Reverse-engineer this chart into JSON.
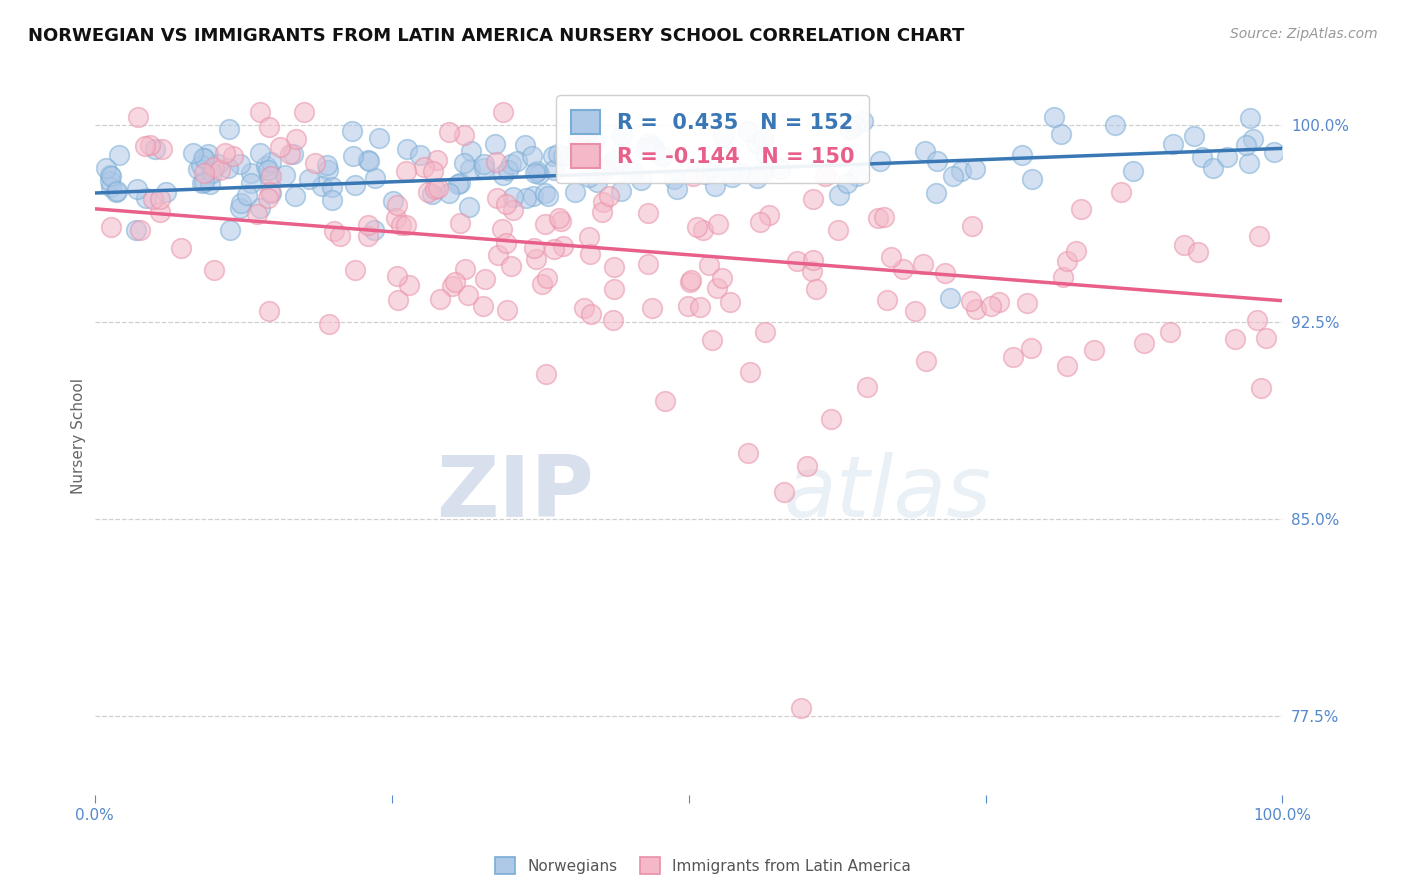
{
  "title": "NORWEGIAN VS IMMIGRANTS FROM LATIN AMERICA NURSERY SCHOOL CORRELATION CHART",
  "source_text": "Source: ZipAtlas.com",
  "ylabel": "Nursery School",
  "xlim": [
    0.0,
    1.0
  ],
  "ylim": [
    0.745,
    1.018
  ],
  "yticks": [
    0.775,
    0.85,
    0.925,
    1.0
  ],
  "ytick_labels": [
    "77.5%",
    "85.0%",
    "92.5%",
    "100.0%"
  ],
  "xticks": [
    0.0,
    0.25,
    0.5,
    0.75,
    1.0
  ],
  "xtick_labels": [
    "0.0%",
    "",
    "",
    "",
    "100.0%"
  ],
  "norwegian_R": 0.435,
  "norwegian_N": 152,
  "immigrant_R": -0.144,
  "immigrant_N": 150,
  "blue_fill": "#aec8e8",
  "blue_edge": "#7aadd4",
  "blue_line": "#3a78b5",
  "pink_fill": "#f4b8c8",
  "pink_edge": "#e890a8",
  "pink_line": "#e8608a",
  "legend_label_norwegian": "Norwegians",
  "legend_label_immigrant": "Immigrants from Latin America",
  "watermark_zip": "ZIP",
  "watermark_atlas": "atlas",
  "background_color": "#ffffff",
  "title_fontsize": 13,
  "axis_label_fontsize": 10,
  "tick_fontsize": 11,
  "source_fontsize": 10,
  "grid_color": "#d0d0d0",
  "tick_color": "#5588cc",
  "nor_trend_start": 0.974,
  "nor_trend_end": 0.991,
  "imm_trend_start": 0.968,
  "imm_trend_end": 0.933
}
